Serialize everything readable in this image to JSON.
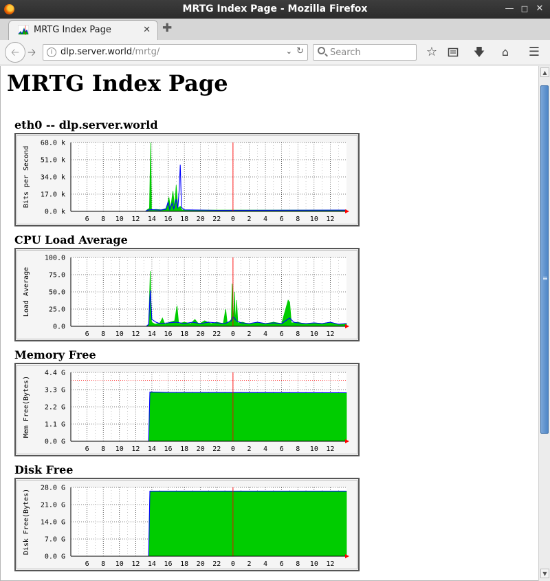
{
  "window": {
    "title": "MRTG Index Page - Mozilla Firefox"
  },
  "tab": {
    "label": "MRTG Index Page",
    "favicon": "mrtg-graph-icon"
  },
  "navbar": {
    "url_host": "dlp.server.world",
    "url_path": "/mrtg/",
    "search_placeholder": "Search"
  },
  "page": {
    "title": "MRTG Index Page"
  },
  "graphs": [
    {
      "title": "eth0 -- dlp.server.world",
      "chart_data": {
        "type": "area",
        "ylabel": "Bits per Second",
        "y_ticks": [
          "68.0 k",
          "51.0 k",
          "34.0 k",
          "17.0 k",
          "0.0 k"
        ],
        "x_ticks": [
          "6",
          "8",
          "10",
          "12",
          "14",
          "16",
          "18",
          "20",
          "22",
          "0",
          "2",
          "4",
          "6",
          "8",
          "10",
          "12"
        ],
        "ylim": [
          0,
          68000
        ],
        "x_range_hours": [
          4,
          14
        ],
        "series": [
          {
            "color": "#00cc00",
            "points": [
              [
                4,
                0
              ],
              [
                13.2,
                0
              ],
              [
                13.4,
                1500
              ],
              [
                13.7,
                3000
              ],
              [
                13.85,
                68000
              ],
              [
                13.95,
                1500
              ],
              [
                14.5,
                2000
              ],
              [
                15.2,
                1500
              ],
              [
                15.8,
                3000
              ],
              [
                16.1,
                14000
              ],
              [
                16.3,
                3000
              ],
              [
                16.6,
                20000
              ],
              [
                16.8,
                4000
              ],
              [
                17.0,
                26000
              ],
              [
                17.2,
                3000
              ],
              [
                17.5,
                5000
              ],
              [
                17.7,
                1500
              ],
              [
                20,
                1200
              ],
              [
                28,
                1200
              ],
              [
                38,
                1200
              ]
            ]
          },
          {
            "color": "#0000ff",
            "points": [
              [
                4,
                0
              ],
              [
                13.2,
                0
              ],
              [
                13.5,
                1200
              ],
              [
                14,
                1600
              ],
              [
                15,
                1200
              ],
              [
                15.7,
                2000
              ],
              [
                16,
                9000
              ],
              [
                16.2,
                2000
              ],
              [
                16.5,
                8000
              ],
              [
                16.7,
                2500
              ],
              [
                17.0,
                12000
              ],
              [
                17.2,
                3000
              ],
              [
                17.35,
                20000
              ],
              [
                17.5,
                46000
              ],
              [
                17.65,
                4000
              ],
              [
                18,
                1500
              ],
              [
                22,
                1000
              ],
              [
                38,
                1200
              ]
            ]
          }
        ],
        "now_line_hour": 24
      }
    },
    {
      "title": "CPU Load Average",
      "chart_data": {
        "type": "area",
        "ylabel": "Load Average",
        "y_ticks": [
          "100.0",
          "75.0",
          "50.0",
          "25.0",
          "0.0"
        ],
        "x_ticks": [
          "6",
          "8",
          "10",
          "12",
          "14",
          "16",
          "18",
          "20",
          "22",
          "0",
          "2",
          "4",
          "6",
          "8",
          "10",
          "12"
        ],
        "ylim": [
          0,
          100
        ],
        "x_range_hours": [
          4,
          14
        ],
        "series": [
          {
            "color": "#00cc00",
            "points": [
              [
                4,
                0
              ],
              [
                13.3,
                0
              ],
              [
                13.6,
                2
              ],
              [
                13.8,
                80
              ],
              [
                13.95,
                6
              ],
              [
                14.4,
                3
              ],
              [
                15,
                5
              ],
              [
                15.3,
                12
              ],
              [
                15.6,
                3
              ],
              [
                16.2,
                6
              ],
              [
                16.8,
                8
              ],
              [
                17.1,
                30
              ],
              [
                17.3,
                4
              ],
              [
                18,
                6
              ],
              [
                18.8,
                4
              ],
              [
                19.3,
                10
              ],
              [
                19.8,
                3
              ],
              [
                20.5,
                8
              ],
              [
                21.3,
                4
              ],
              [
                22,
                6
              ],
              [
                22.8,
                4
              ],
              [
                23.1,
                25
              ],
              [
                23.3,
                4
              ],
              [
                23.8,
                10
              ],
              [
                23.9,
                62
              ],
              [
                24.05,
                8
              ],
              [
                24.2,
                50
              ],
              [
                24.3,
                6
              ],
              [
                24.45,
                38
              ],
              [
                24.6,
                5
              ],
              [
                25.2,
                6
              ],
              [
                26,
                3
              ],
              [
                27,
                6
              ],
              [
                28,
                4
              ],
              [
                29,
                6
              ],
              [
                30,
                4
              ],
              [
                30.8,
                38
              ],
              [
                31,
                35
              ],
              [
                31.2,
                5
              ],
              [
                32,
                6
              ],
              [
                33,
                3
              ],
              [
                34,
                5
              ],
              [
                35,
                4
              ],
              [
                36,
                6
              ],
              [
                37,
                3
              ],
              [
                38,
                4
              ]
            ]
          },
          {
            "color": "#0000ff",
            "points": [
              [
                4,
                0
              ],
              [
                13.3,
                0
              ],
              [
                13.6,
                3
              ],
              [
                13.8,
                52
              ],
              [
                14,
                10
              ],
              [
                14.5,
                6
              ],
              [
                15,
                4
              ],
              [
                16,
                5
              ],
              [
                17,
                6
              ],
              [
                18,
                4
              ],
              [
                19,
                6
              ],
              [
                20,
                4
              ],
              [
                21,
                6
              ],
              [
                22,
                5
              ],
              [
                23,
                4
              ],
              [
                23.8,
                8
              ],
              [
                24,
                14
              ],
              [
                24.2,
                12
              ],
              [
                24.4,
                8
              ],
              [
                25,
                5
              ],
              [
                26,
                4
              ],
              [
                27,
                6
              ],
              [
                28,
                4
              ],
              [
                29,
                5
              ],
              [
                30,
                4
              ],
              [
                31,
                12
              ],
              [
                31.5,
                6
              ],
              [
                32,
                5
              ],
              [
                33,
                4
              ],
              [
                34,
                5
              ],
              [
                35,
                4
              ],
              [
                36,
                6
              ],
              [
                37,
                3
              ],
              [
                38,
                4
              ]
            ]
          }
        ],
        "now_line_hour": 24
      }
    },
    {
      "title": "Memory Free",
      "chart_data": {
        "type": "area",
        "ylabel": "Mem Free(Bytes)",
        "y_ticks": [
          "4.4 G",
          "3.3 G",
          "2.2 G",
          "1.1 G",
          "0.0 G"
        ],
        "x_ticks": [
          "6",
          "8",
          "10",
          "12",
          "14",
          "16",
          "18",
          "20",
          "22",
          "0",
          "2",
          "4",
          "6",
          "8",
          "10",
          "12"
        ],
        "ylim": [
          0,
          4.4
        ],
        "x_range_hours": [
          4,
          14
        ],
        "max_line": 3.9,
        "series": [
          {
            "color": "#00cc00",
            "points": [
              [
                4,
                0
              ],
              [
                13.6,
                0
              ],
              [
                13.75,
                3.15
              ],
              [
                16,
                3.12
              ],
              [
                38,
                3.1
              ]
            ]
          },
          {
            "color": "#0000ff",
            "points": [
              [
                4,
                0
              ],
              [
                13.6,
                0
              ],
              [
                13.75,
                3.15
              ],
              [
                16,
                3.12
              ],
              [
                38,
                3.1
              ]
            ]
          }
        ],
        "now_line_hour": 24
      }
    },
    {
      "title": "Disk Free",
      "chart_data": {
        "type": "area",
        "ylabel": "Disk Free(Bytes)",
        "y_ticks": [
          "28.0 G",
          "21.0 G",
          "14.0 G",
          "7.0 G",
          "0.0 G"
        ],
        "x_ticks": [
          "6",
          "8",
          "10",
          "12",
          "14",
          "16",
          "18",
          "20",
          "22",
          "0",
          "2",
          "4",
          "6",
          "8",
          "10",
          "12"
        ],
        "ylim": [
          0,
          28
        ],
        "x_range_hours": [
          4,
          14
        ],
        "series": [
          {
            "color": "#00cc00",
            "points": [
              [
                4,
                0
              ],
              [
                13.6,
                0
              ],
              [
                13.75,
                26.5
              ],
              [
                38,
                26.5
              ]
            ]
          },
          {
            "color": "#0000ff",
            "points": [
              [
                4,
                0
              ],
              [
                13.6,
                0
              ],
              [
                13.75,
                26.5
              ],
              [
                38,
                26.5
              ]
            ]
          }
        ],
        "now_line_hour": 24
      }
    }
  ]
}
